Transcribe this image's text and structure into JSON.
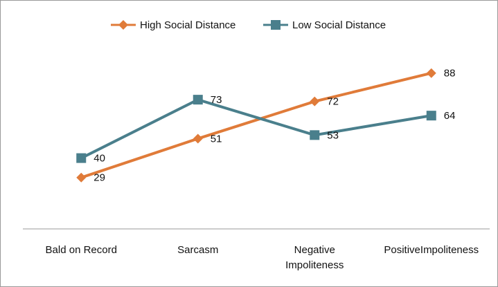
{
  "chart_data": {
    "type": "line",
    "categories": [
      "Bald on Record",
      "Sarcasm",
      "Negative Impoliteness",
      "PositiveImpoliteness"
    ],
    "series": [
      {
        "name": "High Social Distance",
        "color": "#e07b39",
        "marker": "diamond",
        "values": [
          29,
          51,
          72,
          88
        ]
      },
      {
        "name": "Low Social Distance",
        "color": "#4a7f8c",
        "marker": "square",
        "values": [
          40,
          73,
          53,
          64
        ]
      }
    ],
    "ylim": [
      0,
      100
    ],
    "legend": "top"
  }
}
